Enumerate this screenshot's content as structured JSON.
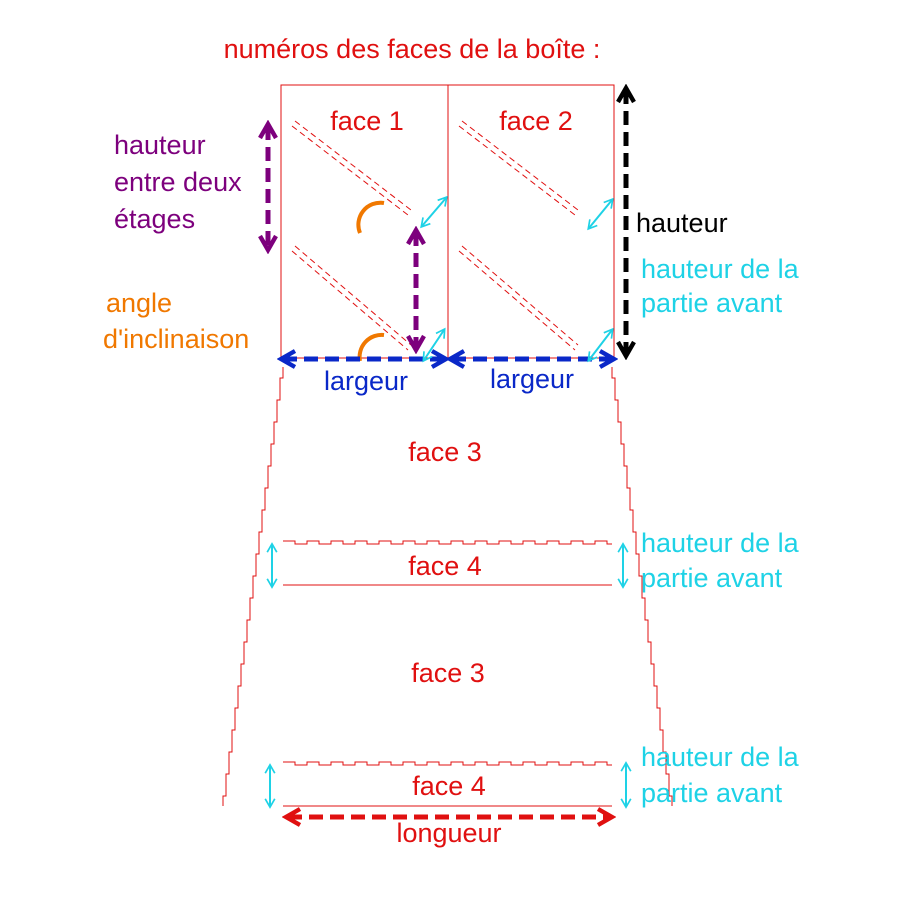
{
  "title": "numéros des faces de la boîte :",
  "faces": {
    "face1": "face 1",
    "face2": "face 2",
    "face3_top": "face 3",
    "face4_top": "face 4",
    "face3_bottom": "face 3",
    "face4_bottom": "face 4"
  },
  "labels": {
    "hauteur_entre_etages": [
      "hauteur",
      "entre deux",
      "étages"
    ],
    "angle_inclinaison": [
      "angle",
      "d'inclinaison"
    ],
    "hauteur": "hauteur",
    "hauteur_partie_avant": [
      "hauteur de la",
      "partie avant"
    ],
    "largeur_left": "largeur",
    "largeur_right": "largeur",
    "hauteur_partie_avant_2": [
      "hauteur de la",
      "partie avant"
    ],
    "hauteur_partie_avant_3": [
      "hauteur de la",
      "partie avant"
    ],
    "longueur": "longueur"
  },
  "colors": {
    "outline": "#e01010",
    "purple": "#7d007d",
    "orange": "#f07800",
    "blue": "#0a28c8",
    "cyan": "#1ed2e6",
    "black": "#000000"
  }
}
